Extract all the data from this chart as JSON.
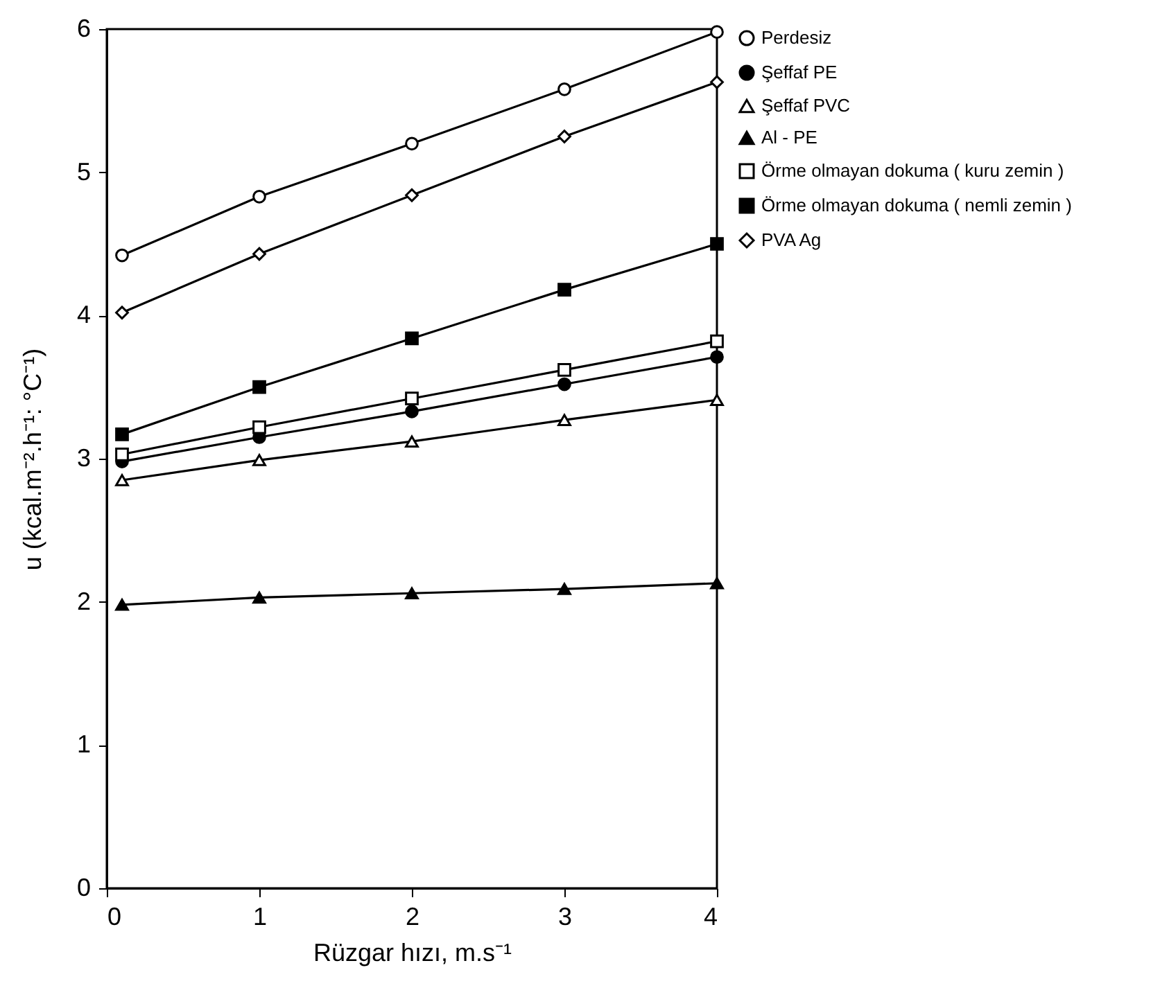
{
  "chart_data": {
    "type": "line",
    "xlabel": "Rüzgar hızı, m.s⁻¹",
    "ylabel": "u (kcal.m⁻².h⁻¹: °C⁻¹)",
    "x": [
      0.1,
      1,
      2,
      3,
      4
    ],
    "xlim": [
      0,
      4
    ],
    "xticks": [
      0,
      1,
      2,
      3,
      4
    ],
    "ylim": [
      0,
      6
    ],
    "yticks": [
      0,
      1,
      2,
      3,
      4,
      5,
      6
    ],
    "grid": false,
    "legend": "right",
    "line_style": "solid",
    "series": [
      {
        "name": "Perdesiz",
        "color": "#000000",
        "marker": "circle",
        "values": [
          4.42,
          4.83,
          5.2,
          5.58,
          5.98
        ]
      },
      {
        "name": "Şeffaf PE",
        "color": "#000000",
        "marker": "circle",
        "values": [
          2.98,
          3.15,
          3.33,
          3.52,
          3.71
        ]
      },
      {
        "name": "Şeffaf PVC",
        "color": "#000000",
        "marker": "triangle",
        "values": [
          2.85,
          2.99,
          3.12,
          3.27,
          3.41
        ]
      },
      {
        "name": "Al - PE",
        "color": "#000000",
        "marker": "triangle",
        "values": [
          1.98,
          2.03,
          2.06,
          2.09,
          2.13
        ]
      },
      {
        "name": "Örme olmayan dokuma\n( kuru zemin )",
        "color": "#000000",
        "marker": "square",
        "values": [
          3.03,
          3.22,
          3.42,
          3.62,
          3.82
        ]
      },
      {
        "name": "Örme olmayan dokuma\n( nemli zemin )",
        "color": "#000000",
        "marker": "square",
        "values": [
          3.17,
          3.5,
          3.84,
          4.18,
          4.5
        ]
      },
      {
        "name": "PVA Ag",
        "color": "#000000",
        "marker": "diamond",
        "values": [
          4.02,
          4.43,
          4.84,
          5.25,
          5.63
        ]
      }
    ]
  }
}
